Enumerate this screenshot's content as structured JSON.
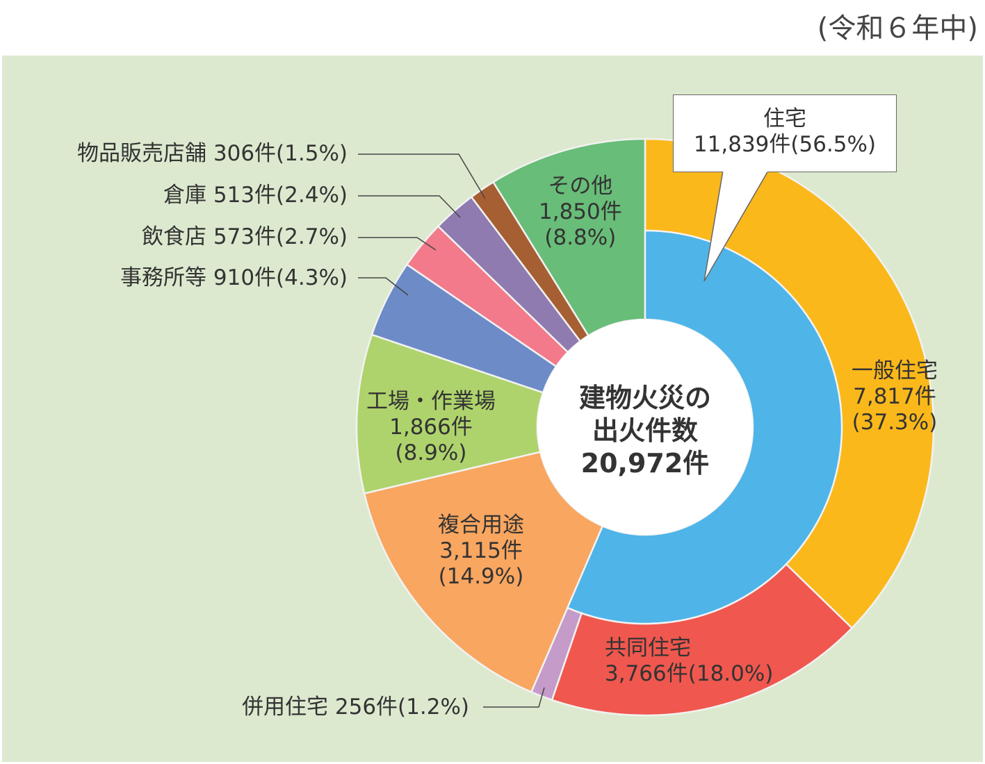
{
  "note": "(令和６年中)",
  "chart_data": {
    "type": "pie",
    "variant": "nested-donut",
    "center_label": [
      "建物火災の",
      "出火件数",
      "20,972件"
    ],
    "total": 20972,
    "outer_ring": [
      {
        "name": "一般住宅",
        "count": 7817,
        "count_label": "7,817件",
        "percent": 37.3,
        "percent_label": "(37.3%)",
        "color": "#fbb81a"
      },
      {
        "name": "共同住宅",
        "count": 3766,
        "count_label": "3,766件",
        "percent": 18.0,
        "percent_label": "(18.0%)",
        "color": "#f0574e"
      },
      {
        "name": "併用住宅",
        "count": 256,
        "count_label": "256件",
        "percent": 1.2,
        "percent_label": "(1.2%)",
        "color": "#c59bc9"
      },
      {
        "name": "複合用途",
        "count": 3115,
        "count_label": "3,115件",
        "percent": 14.9,
        "percent_label": "(14.9%)",
        "color": "#f9a660"
      },
      {
        "name": "工場・作業場",
        "count": 1866,
        "count_label": "1,866件",
        "percent": 8.9,
        "percent_label": "(8.9%)",
        "color": "#aed36c"
      },
      {
        "name": "事務所等",
        "count": 910,
        "count_label": "910件",
        "percent": 4.3,
        "percent_label": "(4.3%)",
        "color": "#6d8bc7"
      },
      {
        "name": "飲食店",
        "count": 573,
        "count_label": "573件",
        "percent": 2.7,
        "percent_label": "(2.7%)",
        "color": "#f27a8b"
      },
      {
        "name": "倉庫",
        "count": 513,
        "count_label": "513件",
        "percent": 2.4,
        "percent_label": "(2.4%)",
        "color": "#8f7baf"
      },
      {
        "name": "物品販売店舗",
        "count": 306,
        "count_label": "306件",
        "percent": 1.5,
        "percent_label": "(1.5%)",
        "color": "#a65f32"
      },
      {
        "name": "その他",
        "count": 1850,
        "count_label": "1,850件",
        "percent": 8.8,
        "percent_label": "(8.8%)",
        "color": "#68bd78"
      }
    ],
    "inner_ring": [
      {
        "name": "住宅",
        "count": 11839,
        "count_label": "11,839件",
        "percent": 56.5,
        "percent_label": "(56.5%)",
        "color": "#4fb4e8",
        "includes": [
          "一般住宅",
          "共同住宅",
          "併用住宅"
        ]
      }
    ]
  }
}
